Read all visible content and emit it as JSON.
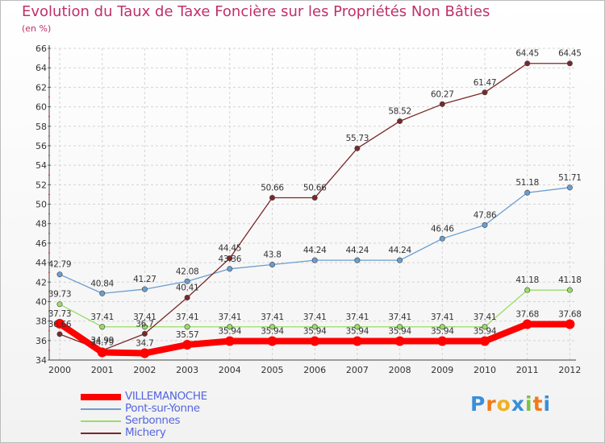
{
  "title": "Evolution du Taux de Taxe Foncière sur les Propriétés Non Bâties",
  "unit_label": "(en %)",
  "brand": {
    "logo_letters": [
      "P",
      "r",
      "o",
      "x",
      "i",
      "t",
      "i"
    ],
    "logo_colors": [
      "#3a8fd8",
      "#f07a1a",
      "#f0b020",
      "#3a8fd8",
      "#7cc242",
      "#f07a1a",
      "#3a8fd8"
    ]
  },
  "chart_data": {
    "type": "line",
    "x": [
      "2000",
      "2001",
      "2002",
      "2003",
      "2004",
      "2005",
      "2006",
      "2007",
      "2008",
      "2009",
      "2010",
      "2011",
      "2012"
    ],
    "ylim": [
      34,
      66
    ],
    "yticks": [
      "34",
      "36",
      "38",
      "40",
      "42",
      "44",
      "46",
      "48",
      "50",
      "52",
      "54",
      "56",
      "58",
      "60",
      "62",
      "64",
      "66"
    ],
    "grid": true,
    "legend_position": "bottom-left",
    "series": [
      {
        "name": "VILLEMANOCHE",
        "color": "#ff0000",
        "values": [
          37.73,
          34.79,
          34.7,
          35.57,
          35.94,
          35.94,
          35.94,
          35.94,
          35.94,
          35.94,
          35.94,
          37.68,
          37.68
        ],
        "labels": [
          "37.73",
          "34.79",
          "34.7",
          "35.57",
          "35.94",
          "35.94",
          "35.94",
          "35.94",
          "35.94",
          "35.94",
          "35.94",
          "37.68",
          "37.68"
        ]
      },
      {
        "name": "Pont-sur-Yonne",
        "color": "#6b9dcf",
        "values": [
          42.79,
          40.84,
          41.27,
          42.08,
          43.36,
          43.8,
          44.24,
          44.24,
          44.24,
          46.46,
          47.86,
          51.18,
          51.71
        ],
        "labels": [
          "42.79",
          "40.84",
          "41.27",
          "42.08",
          "43.36",
          "43.8",
          "44.24",
          "44.24",
          "44.24",
          "46.46",
          "47.86",
          "51.18",
          "51.71"
        ]
      },
      {
        "name": "Serbonnes",
        "color": "#99dd66",
        "values": [
          39.73,
          37.41,
          37.41,
          37.41,
          37.41,
          37.41,
          37.41,
          37.41,
          37.41,
          37.41,
          37.41,
          41.18,
          41.18
        ],
        "labels": [
          "39.73",
          "37.41",
          "37.41",
          "37.41",
          "37.41",
          "37.41",
          "37.41",
          "37.41",
          "37.41",
          "37.41",
          "37.41",
          "41.18",
          "41.18"
        ]
      },
      {
        "name": "Michery",
        "color": "#7a2828",
        "values": [
          36.66,
          34.99,
          36.7,
          40.41,
          44.45,
          50.66,
          50.66,
          55.73,
          58.52,
          60.27,
          61.47,
          64.45,
          64.45
        ],
        "labels": [
          "36.66",
          "34.99",
          "36.7",
          "40.41",
          "44.45",
          "50.66",
          "50.66",
          "55.73",
          "58.52",
          "60.27",
          "61.47",
          "64.45",
          "64.45"
        ]
      }
    ]
  }
}
